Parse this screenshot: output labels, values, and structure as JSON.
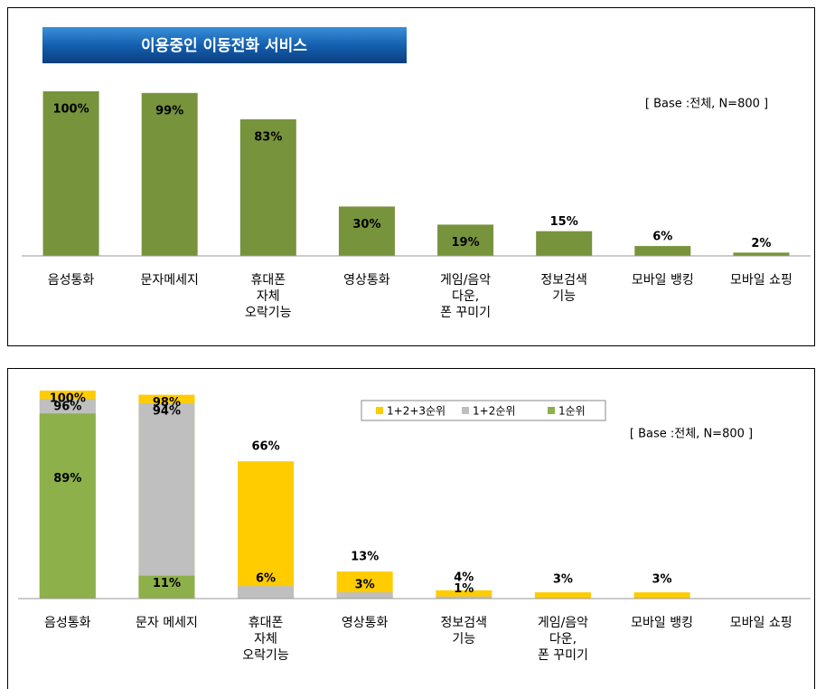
{
  "chart_data": [
    {
      "type": "bar",
      "title": "이용중인 이동전화 서비스",
      "annotation": "[ Base :전체,  N=800 ]",
      "categories": [
        "음성통화",
        "문자메세지",
        "휴대폰\n자체\n오락기능",
        "영상통화",
        "게임/음악\n다운,\n폰 꾸미기",
        "정보검색\n기능",
        "모바일 뱅킹",
        "모바일 쇼핑"
      ],
      "values": [
        100,
        99,
        83,
        30,
        19,
        15,
        6,
        2
      ],
      "value_labels": [
        "100%",
        "99%",
        "83%",
        "30%",
        "19%",
        "15%",
        "6%",
        "2%"
      ],
      "color": "#77933c",
      "ylim": [
        0,
        100
      ]
    },
    {
      "type": "bar",
      "annotation": "[ Base :전체,  N=800 ]",
      "categories": [
        "음성통화",
        "문자 메세지",
        "휴대폰\n자체\n오락기능",
        "영상통화",
        "정보검색\n기능",
        "게임/음악\n다운,\n폰 꾸미기",
        "모바일 뱅킹",
        "모바일 쇼핑"
      ],
      "series": [
        {
          "name": "1+2+3순위",
          "color": "#ffcc00",
          "values": [
            100,
            98,
            66,
            13,
            4,
            3,
            3,
            null
          ],
          "value_labels": [
            "100%",
            "98%",
            "66%",
            "13%",
            "4%",
            "3%",
            "3%",
            null
          ]
        },
        {
          "name": "1+2순위",
          "color": "#bfbfbf",
          "values": [
            96,
            94,
            6,
            3,
            1,
            null,
            null,
            null
          ],
          "value_labels": [
            "96%",
            "94%",
            "6%",
            "3%",
            "1%",
            null,
            null,
            null
          ]
        },
        {
          "name": "1순위",
          "color": "#8db04a",
          "values": [
            89,
            11,
            null,
            null,
            null,
            null,
            null,
            null
          ],
          "value_labels": [
            "89%",
            "11%",
            null,
            null,
            null,
            null,
            null,
            null
          ]
        }
      ],
      "ylim": [
        0,
        100
      ]
    }
  ]
}
